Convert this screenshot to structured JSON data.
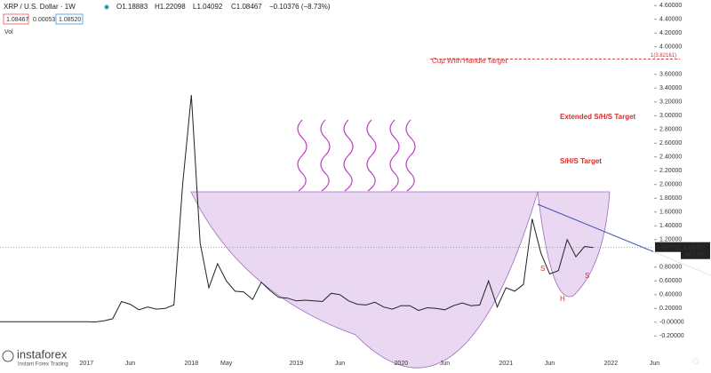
{
  "header": {
    "symbol": "XRP / U.S. Dollar · 1W",
    "open": "O1.18883",
    "high": "H1.22098",
    "low": "L1.04092",
    "close": "C1.08467",
    "change": "−0.10376 (−8.73%)",
    "sell": "1.08467",
    "spread": "0.00053",
    "buy": "1.08520",
    "volume": "Vol"
  },
  "chart_data": {
    "type": "line",
    "categories": [
      null,
      null,
      null,
      null,
      null,
      null,
      null,
      null,
      null,
      null,
      "2017",
      null,
      null,
      null,
      null,
      "Jun",
      null,
      null,
      null,
      null,
      null,
      null,
      "2018",
      null,
      null,
      null,
      "May",
      null,
      null,
      null,
      null,
      null,
      null,
      null,
      "2019",
      null,
      null,
      null,
      null,
      "Jun",
      null,
      null,
      null,
      null,
      null,
      null,
      "2020",
      null,
      null,
      null,
      null,
      "Jun",
      null,
      null,
      null,
      null,
      null,
      null,
      "2021",
      null,
      null,
      null,
      null,
      "Jun",
      null,
      null,
      null,
      null,
      null,
      null,
      "2022",
      null,
      null,
      null,
      null,
      "Jun",
      null,
      null,
      null
    ],
    "series": [
      {
        "name": "XRPUSD",
        "color": "#222222",
        "values": [
          0.007,
          0.006,
          0.006,
          0.006,
          0.006,
          0.006,
          0.007,
          0.006,
          0.008,
          0.006,
          0.006,
          0.004,
          0.02,
          0.05,
          0.3,
          0.26,
          0.18,
          0.22,
          0.19,
          0.2,
          0.25,
          2.0,
          3.3,
          1.15,
          0.5,
          0.85,
          0.6,
          0.45,
          0.44,
          0.33,
          0.58,
          0.46,
          0.36,
          0.35,
          0.31,
          0.32,
          0.31,
          0.3,
          0.42,
          0.4,
          0.31,
          0.26,
          0.25,
          0.29,
          0.22,
          0.19,
          0.24,
          0.24,
          0.17,
          0.21,
          0.2,
          0.18,
          0.24,
          0.28,
          0.24,
          0.25,
          0.6,
          0.22,
          0.5,
          0.45,
          0.55,
          1.5,
          1.0,
          0.7,
          0.75,
          1.2,
          0.95,
          1.1,
          1.08467,
          null,
          null,
          null,
          null,
          null,
          null,
          null,
          null,
          null,
          null
        ]
      }
    ],
    "ylim": [
      -0.48,
      4.68
    ],
    "yticks": [
      {
        "value": 4.6,
        "label": "4.60000"
      },
      {
        "value": 4.4,
        "label": "4.40000"
      },
      {
        "value": 4.2,
        "label": "4.20000"
      },
      {
        "value": 4.0,
        "label": "4.00000"
      },
      {
        "value": 3.6,
        "label": "3.60000"
      },
      {
        "value": 3.4,
        "label": "3.40000"
      },
      {
        "value": 3.2,
        "label": "3.20000"
      },
      {
        "value": 3.0,
        "label": "3.00000"
      },
      {
        "value": 2.8,
        "label": "2.80000"
      },
      {
        "value": 2.6,
        "label": "2.60000"
      },
      {
        "value": 2.4,
        "label": "2.40000"
      },
      {
        "value": 2.2,
        "label": "2.20000"
      },
      {
        "value": 2.0,
        "label": "2.00000"
      },
      {
        "value": 1.8,
        "label": "1.80000"
      },
      {
        "value": 1.6,
        "label": "1.60000"
      },
      {
        "value": 1.4,
        "label": "1.40000"
      },
      {
        "value": 1.2,
        "label": "1.20000"
      },
      {
        "value": 0.8,
        "label": "0.80000"
      },
      {
        "value": 0.6,
        "label": "0.60000"
      },
      {
        "value": 0.4,
        "label": "0.40000"
      },
      {
        "value": 0.2,
        "label": "0.20000"
      },
      {
        "value": 0,
        "label": "-0.00000"
      },
      {
        "value": -0.2,
        "label": "-0.20000"
      }
    ],
    "grid": false,
    "price_tag": {
      "symbol": "XRPUSD",
      "value": 1.08467,
      "countdown": "4d 19h"
    },
    "target_level": {
      "value": 3.82161,
      "label": "1(3.82161)",
      "color": "#d32f2f"
    },
    "annotations": [
      "Cup With Handle Target",
      "Extended S/H/S Target",
      "S/H/S Target",
      "S",
      "H",
      "S"
    ]
  },
  "logo": {
    "name": "instaforex",
    "tagline": "Instant Forex Trading"
  }
}
